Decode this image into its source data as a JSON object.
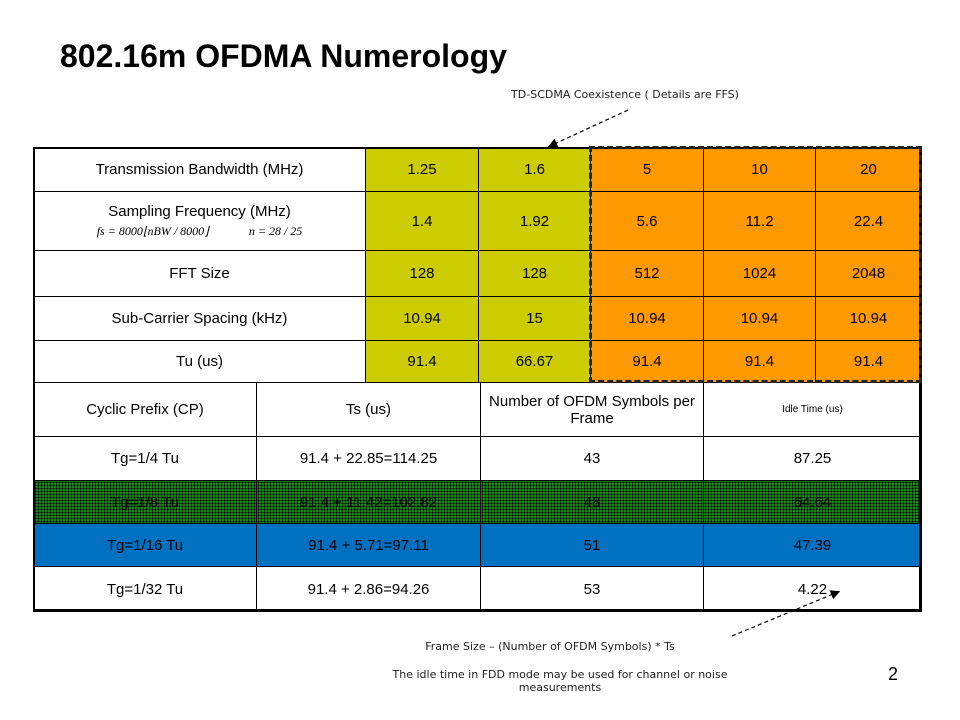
{
  "title": "802.16m OFDMA Numerology",
  "annotations": {
    "top": "TD-SCDMA Coexistence ( Details are FFS)",
    "bottom": "Frame Size – (Number of OFDM Symbols) * Ts",
    "idle_note": "The idle time in FDD mode may be used for channel or noise measurements"
  },
  "page_number": "2",
  "table": {
    "upper_rows": [
      {
        "label": "Transmission Bandwidth (MHz)",
        "values": [
          "1.25",
          "1.6",
          "5",
          "10",
          "20"
        ]
      },
      {
        "label": "Sampling Frequency (MHz)",
        "formula": [
          "fs = 8000⌊nBW / 8000⌋",
          "n = 28 / 25"
        ],
        "values": [
          "1.4",
          "1.92",
          "5.6",
          "11.2",
          "22.4"
        ]
      },
      {
        "label": "FFT Size",
        "values": [
          "128",
          "128",
          "512",
          "1024",
          "2048"
        ]
      },
      {
        "label": "Sub-Carrier Spacing (kHz)",
        "values": [
          "10.94",
          "15",
          "10.94",
          "10.94",
          "10.94"
        ]
      },
      {
        "label": "Tu (us)",
        "values": [
          "91.4",
          "66.67",
          "91.4",
          "91.4",
          "91.4"
        ]
      }
    ],
    "lower_header": [
      "Cyclic Prefix (CP)",
      "Ts (us)",
      "Number of OFDM Symbols per Frame",
      "Idle Time (us)"
    ],
    "lower_rows": [
      [
        "Tg=1/4 Tu",
        "91.4 + 22.85=114.25",
        "43",
        "87.25"
      ],
      [
        "Tg=1/8 Tu",
        "91.4 + 11.42=102.82",
        "48",
        "64.64"
      ],
      [
        "Tg=1/16 Tu",
        "91.4 + 5.71=97.11",
        "51",
        "47.39"
      ],
      [
        "Tg=1/32 Tu",
        "91.4 + 2.86=94.26",
        "53",
        "4.22"
      ]
    ]
  }
}
